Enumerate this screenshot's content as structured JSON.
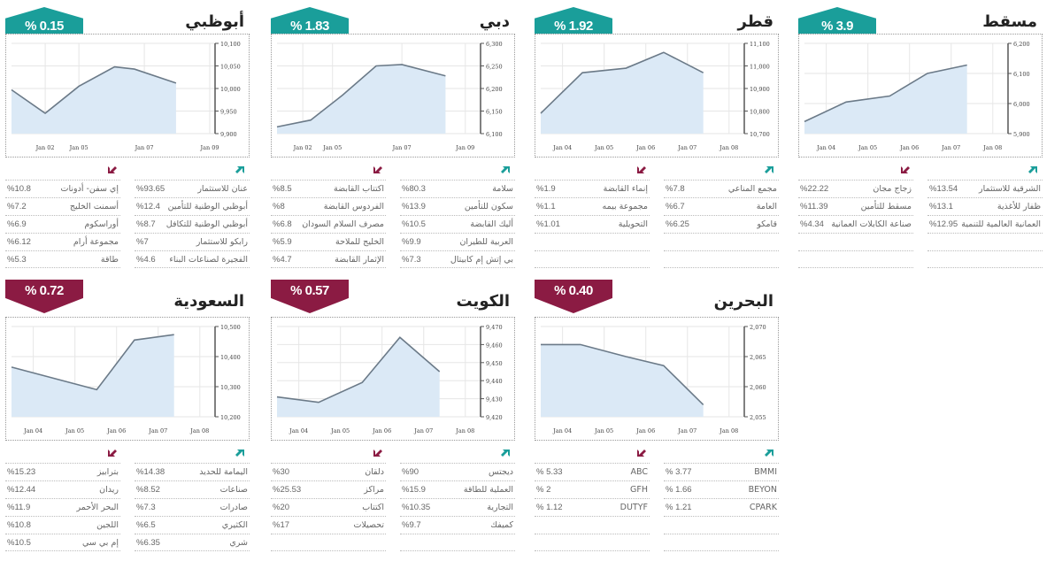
{
  "colors": {
    "up": "#1a9e9a",
    "down": "#8b1b43",
    "line": "#6b7a88",
    "fill": "#dbe9f6",
    "grid": "#e6e6e6"
  },
  "markets": [
    {
      "id": "abudhabi",
      "title": "أبوظبي",
      "change": "% 0.15",
      "direction": "up",
      "gainers": [
        {
          "name": "عنان للاستثمار",
          "pct": "%93.65"
        },
        {
          "name": "أبوظبي الوطنية للتأمين",
          "pct": "%12.4"
        },
        {
          "name": "أبوظبي الوطنية للتكافل",
          "pct": "%8.7"
        },
        {
          "name": "رابكو للاستثمار",
          "pct": "%7"
        },
        {
          "name": "الفجيرة لصناعات البناء",
          "pct": "%4.6"
        }
      ],
      "losers": [
        {
          "name": "إي سفن- أدونات",
          "pct": "%10.8"
        },
        {
          "name": "أسمنت الخليج",
          "pct": "%7.2"
        },
        {
          "name": "أوراسكوم",
          "pct": "%6.9"
        },
        {
          "name": "مجموعة أرام",
          "pct": "%6.12"
        },
        {
          "name": "طاقة",
          "pct": "%5.3"
        }
      ]
    },
    {
      "id": "dubai",
      "title": "دبي",
      "change": "% 1.83",
      "direction": "up",
      "gainers": [
        {
          "name": "سلامة",
          "pct": "%80.3"
        },
        {
          "name": "سكون للتأمين",
          "pct": "%13.9"
        },
        {
          "name": "أليك القابضة",
          "pct": "%10.5"
        },
        {
          "name": "العربية للطيران",
          "pct": "%9.9"
        },
        {
          "name": "بي إتش إم كابيتال",
          "pct": "%7.3"
        }
      ],
      "losers": [
        {
          "name": "اكتتاب القابضة",
          "pct": "%8.5"
        },
        {
          "name": "الفردوس القابضة",
          "pct": "%8"
        },
        {
          "name": "مصرف السلام السودان",
          "pct": "%6.8"
        },
        {
          "name": "الخليج للملاحة",
          "pct": "%5.9"
        },
        {
          "name": "الإثمار القابضة",
          "pct": "%4.7"
        }
      ]
    },
    {
      "id": "qatar",
      "title": "قطر",
      "change": "% 1.92",
      "direction": "up",
      "gainers": [
        {
          "name": "مجمع المناعي",
          "pct": "%7.8"
        },
        {
          "name": "العامة",
          "pct": "%6.7"
        },
        {
          "name": "قامكو",
          "pct": "%6.25"
        },
        {
          "name": "",
          "pct": ""
        },
        {
          "name": "",
          "pct": ""
        }
      ],
      "losers": [
        {
          "name": "إنماء القابضة",
          "pct": "%1.9"
        },
        {
          "name": "مجموعة بيمه",
          "pct": "%1.1"
        },
        {
          "name": "التحويلية",
          "pct": "%1.01"
        },
        {
          "name": "",
          "pct": ""
        },
        {
          "name": "",
          "pct": ""
        }
      ]
    },
    {
      "id": "muscat",
      "title": "مسقط",
      "change": "% 3.9",
      "direction": "up",
      "gainers": [
        {
          "name": "الشرقية للاستثمار",
          "pct": "%13.54"
        },
        {
          "name": "ظفار للأغذية",
          "pct": "%13.1"
        },
        {
          "name": "العمانية العالمية للتنمية",
          "pct": "%12.95"
        },
        {
          "name": "",
          "pct": ""
        },
        {
          "name": "",
          "pct": ""
        }
      ],
      "losers": [
        {
          "name": "زجاج مجان",
          "pct": "%22.22"
        },
        {
          "name": "مسقط للتأمين",
          "pct": "%11.39"
        },
        {
          "name": "صناعة الكابلات العمانية",
          "pct": "%4.34"
        },
        {
          "name": "",
          "pct": ""
        },
        {
          "name": "",
          "pct": ""
        }
      ]
    },
    {
      "id": "saudi",
      "title": "السعودية",
      "change": "% 0.72",
      "direction": "down",
      "gainers": [
        {
          "name": "اليمامة للحديد",
          "pct": "%14.38"
        },
        {
          "name": "صناعات",
          "pct": "%8.52"
        },
        {
          "name": "صادرات",
          "pct": "%7.3"
        },
        {
          "name": "الكثيري",
          "pct": "%6.5"
        },
        {
          "name": "شري",
          "pct": "%6.35"
        }
      ],
      "losers": [
        {
          "name": "بترابيز",
          "pct": "%15.23"
        },
        {
          "name": "ريدان",
          "pct": "%12.44"
        },
        {
          "name": "البحر الأحمر",
          "pct": "%11.9"
        },
        {
          "name": "اللجين",
          "pct": "%10.8"
        },
        {
          "name": "إم بي سي",
          "pct": "%10.5"
        }
      ]
    },
    {
      "id": "kuwait",
      "title": "الكويت",
      "change": "% 0.57",
      "direction": "down",
      "gainers": [
        {
          "name": "ديجتس",
          "pct": "%90"
        },
        {
          "name": "العملية للطاقة",
          "pct": "%15.9"
        },
        {
          "name": "التجارية",
          "pct": "%10.35"
        },
        {
          "name": "كميفك",
          "pct": "%9.7"
        },
        {
          "name": "",
          "pct": ""
        }
      ],
      "losers": [
        {
          "name": "دلقان",
          "pct": "%30"
        },
        {
          "name": "مراكز",
          "pct": "%25.53"
        },
        {
          "name": "اكتتاب",
          "pct": "%20"
        },
        {
          "name": "تحصيلات",
          "pct": "%17"
        },
        {
          "name": "",
          "pct": ""
        }
      ]
    },
    {
      "id": "bahrain",
      "title": "البحرين",
      "change": "% 0.40",
      "direction": "down",
      "gainers": [
        {
          "name": "BMMI",
          "pct": "% 3.77"
        },
        {
          "name": "BEYON",
          "pct": "% 1.66"
        },
        {
          "name": "CPARK",
          "pct": "% 1.21"
        },
        {
          "name": "",
          "pct": ""
        },
        {
          "name": "",
          "pct": ""
        }
      ],
      "losers": [
        {
          "name": "ABC",
          "pct": "% 5.33"
        },
        {
          "name": "GFH",
          "pct": "% 2"
        },
        {
          "name": "DUTYF",
          "pct": "% 1.12"
        },
        {
          "name": "",
          "pct": ""
        },
        {
          "name": "",
          "pct": ""
        }
      ]
    }
  ],
  "chart_data": [
    {
      "type": "area",
      "title": "أبوظبي",
      "xticks": [
        "Jan 02",
        "Jan 05",
        "Jan 07",
        "Jan 09"
      ],
      "xtick_pos": [
        0.17,
        0.34,
        0.67,
        1.0
      ],
      "yticks": [
        "10,100",
        "10,050",
        "10,000",
        "9,950",
        "9,900"
      ],
      "ylim": [
        9900,
        10100
      ],
      "x": [
        0,
        0.17,
        0.34,
        0.52,
        0.62,
        0.83
      ],
      "values": [
        9997,
        9945,
        10005,
        10048,
        10043,
        10012
      ]
    },
    {
      "type": "area",
      "title": "دبي",
      "xticks": [
        "Jan 02",
        "Jan 05",
        "Jan 07",
        "Jan 09"
      ],
      "xtick_pos": [
        0.13,
        0.28,
        0.63,
        0.95
      ],
      "yticks": [
        "6,300",
        "6,250",
        "6,200",
        "6,150",
        "6,100"
      ],
      "ylim": [
        6100,
        6300
      ],
      "x": [
        0,
        0.17,
        0.33,
        0.5,
        0.63,
        0.85
      ],
      "values": [
        6115,
        6130,
        6185,
        6250,
        6253,
        6228
      ]
    },
    {
      "type": "area",
      "title": "قطر",
      "xticks": [
        "Jan 04",
        "Jan 05",
        "Jan 06",
        "Jan 07",
        "Jan 08"
      ],
      "xtick_pos": [
        0.11,
        0.32,
        0.53,
        0.74,
        0.95
      ],
      "yticks": [
        "11,100",
        "11,000",
        "10,900",
        "10,800",
        "10,700"
      ],
      "ylim": [
        10700,
        11100
      ],
      "x": [
        0,
        0.21,
        0.43,
        0.62,
        0.82
      ],
      "values": [
        10790,
        10970,
        10990,
        11060,
        10970
      ]
    },
    {
      "type": "area",
      "title": "مسقط",
      "xticks": [
        "Jan 04",
        "Jan 05",
        "Jan 06",
        "Jan 07",
        "Jan 08"
      ],
      "xtick_pos": [
        0.11,
        0.32,
        0.53,
        0.74,
        0.95
      ],
      "yticks": [
        "6,200",
        "6,100",
        "6,000",
        "5,900"
      ],
      "ylim": [
        5900,
        6200
      ],
      "x": [
        0,
        0.21,
        0.43,
        0.62,
        0.82
      ],
      "values": [
        5940,
        6005,
        6025,
        6100,
        6128
      ]
    },
    {
      "type": "area",
      "title": "السعودية",
      "xticks": [
        "Jan 04",
        "Jan 05",
        "Jan 06",
        "Jan 07",
        "Jan 08"
      ],
      "xtick_pos": [
        0.11,
        0.32,
        0.53,
        0.74,
        0.95
      ],
      "yticks": [
        "10,500",
        "10,400",
        "10,300",
        "10,200"
      ],
      "ylim": [
        10200,
        10500
      ],
      "x": [
        0,
        0.43,
        0.62,
        0.82
      ],
      "values": [
        10365,
        10290,
        10455,
        10473
      ]
    },
    {
      "type": "area",
      "title": "الكويت",
      "xticks": [
        "Jan 04",
        "Jan 05",
        "Jan 06",
        "Jan 07",
        "Jan 08"
      ],
      "xtick_pos": [
        0.11,
        0.32,
        0.53,
        0.74,
        0.95
      ],
      "yticks": [
        "9,470",
        "9,460",
        "9,450",
        "9,440",
        "9,430",
        "9,420"
      ],
      "ylim": [
        9420,
        9470
      ],
      "x": [
        0,
        0.21,
        0.43,
        0.62,
        0.82
      ],
      "values": [
        9431,
        9428,
        9439,
        9464,
        9445
      ]
    },
    {
      "type": "area",
      "title": "البحرين",
      "xticks": [
        "Jan 04",
        "Jan 05",
        "Jan 06",
        "Jan 07",
        "Jan 08"
      ],
      "xtick_pos": [
        0.11,
        0.32,
        0.53,
        0.74,
        0.95
      ],
      "yticks": [
        "2,070",
        "2,065",
        "2,060",
        "2,055"
      ],
      "ylim": [
        2055,
        2070
      ],
      "x": [
        0,
        0.2,
        0.43,
        0.62,
        0.82
      ],
      "values": [
        2067,
        2067,
        2065,
        2063.5,
        2057
      ]
    }
  ]
}
